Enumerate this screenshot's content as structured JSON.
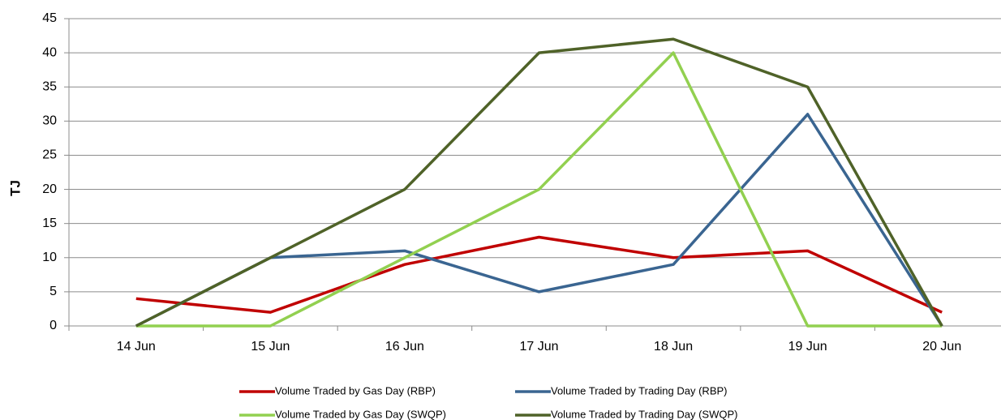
{
  "chart_data": {
    "type": "line",
    "y_label": "TJ",
    "categories": [
      "14 Jun",
      "15 Jun",
      "16 Jun",
      "17 Jun",
      "18 Jun",
      "19 Jun",
      "20 Jun"
    ],
    "series": [
      {
        "name": "Volume Traded by Gas Day (RBP)",
        "color": "#c00000",
        "values": [
          4,
          2,
          9,
          13,
          10,
          11,
          2
        ]
      },
      {
        "name": "Volume Traded by Trading Day (RBP)",
        "color": "#3a6591",
        "values": [
          0,
          10,
          11,
          5,
          9,
          31,
          0
        ]
      },
      {
        "name": "Volume Traded by Gas Day (SWQP)",
        "color": "#92d050",
        "values": [
          0,
          0,
          10,
          20,
          40,
          0,
          0
        ]
      },
      {
        "name": "Volume Traded by Trading Day (SWQP)",
        "color": "#4f6228",
        "values": [
          0,
          10,
          20,
          40,
          42,
          35,
          0
        ]
      }
    ],
    "ylim": [
      0,
      45
    ],
    "yticks": [
      0,
      5,
      10,
      15,
      20,
      25,
      30,
      35,
      40,
      45
    ],
    "grid": true
  }
}
